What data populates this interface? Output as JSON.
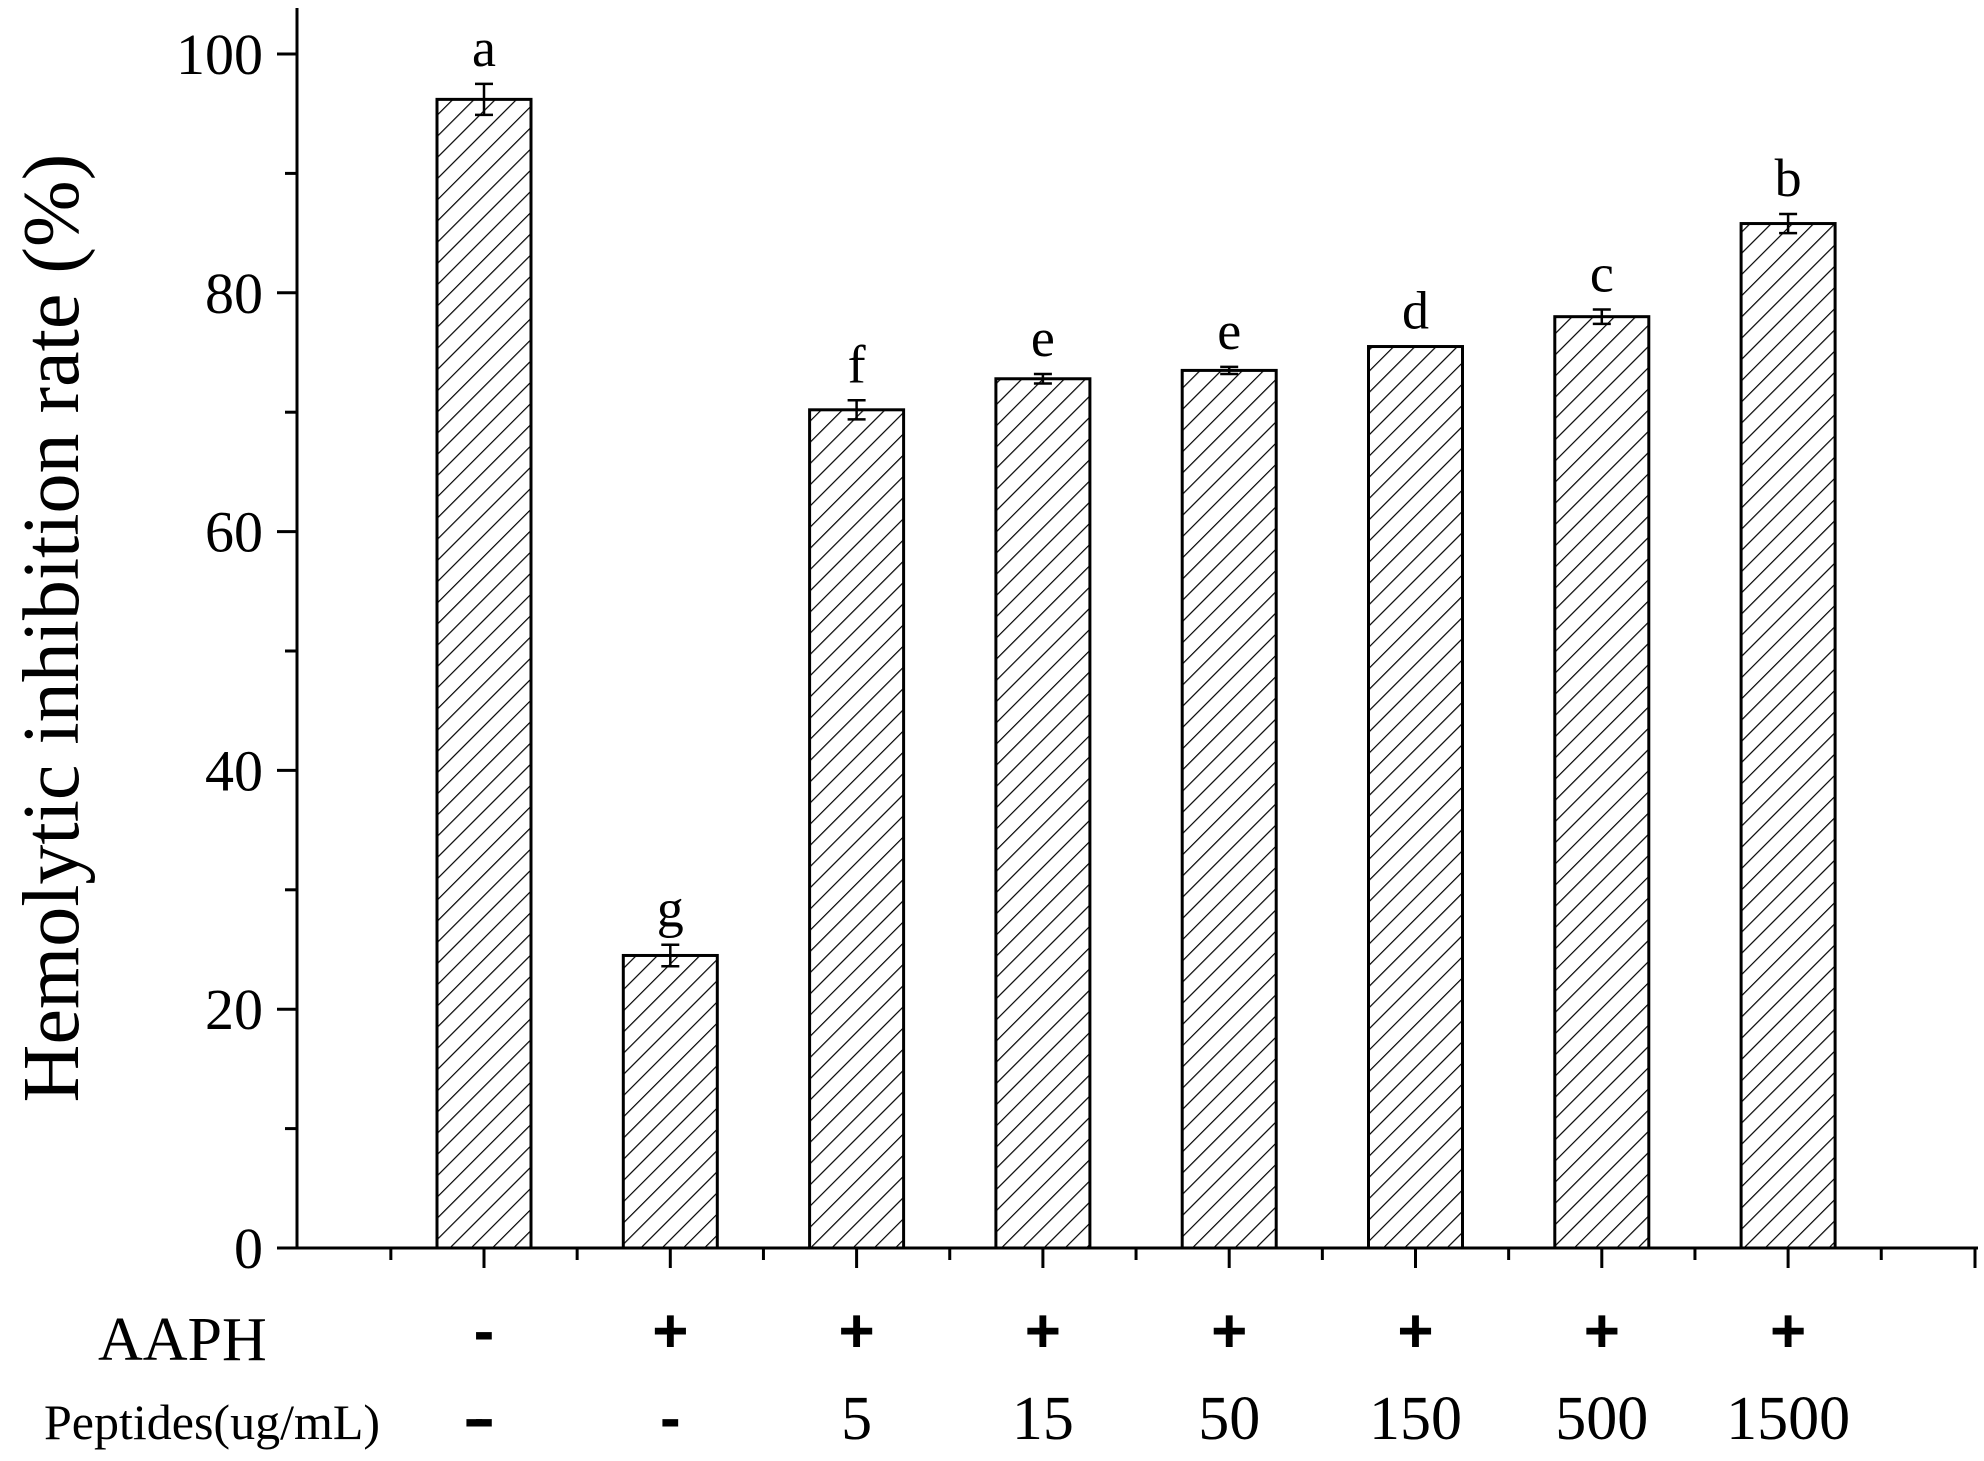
{
  "chart_data": {
    "type": "bar",
    "ylabel": "Hemolytic inhibition rate (%)",
    "ylim": [
      0,
      100
    ],
    "yticks": [
      "0",
      "20",
      "40",
      "60",
      "80",
      "100"
    ],
    "grid": false,
    "pattern": "diagonal-hatch",
    "bars": [
      {
        "value": 96.2,
        "error": 1.3,
        "letter": "a",
        "aaph": "-",
        "peptides": "-"
      },
      {
        "value": 24.5,
        "error": 0.9,
        "letter": "g",
        "aaph": "+",
        "peptides": "-"
      },
      {
        "value": 70.2,
        "error": 0.8,
        "letter": "f",
        "aaph": "+",
        "peptides": "5"
      },
      {
        "value": 72.8,
        "error": 0.4,
        "letter": "e",
        "aaph": "+",
        "peptides": "15"
      },
      {
        "value": 73.5,
        "error": 0.3,
        "letter": "e",
        "aaph": "+",
        "peptides": "50"
      },
      {
        "value": 75.5,
        "error": 0.0,
        "letter": "d",
        "aaph": "+",
        "peptides": "150"
      },
      {
        "value": 78.0,
        "error": 0.6,
        "letter": "c",
        "aaph": "+",
        "peptides": "500"
      },
      {
        "value": 85.8,
        "error": 0.8,
        "letter": "b",
        "aaph": "+",
        "peptides": "1500"
      }
    ],
    "row_labels": {
      "aaph": "AAPH",
      "peptides": "Peptides(ug/mL)",
      "peptides_row_marker": "-"
    }
  }
}
